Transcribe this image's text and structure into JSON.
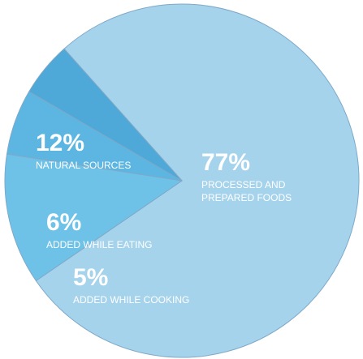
{
  "chart_data": {
    "type": "pie",
    "categories": [
      "PROCESSED AND PREPARED FOODS",
      "NATURAL SOURCES",
      "ADDED WHILE EATING",
      "ADDED WHILE COOKING"
    ],
    "values": [
      77,
      12,
      6,
      5
    ],
    "value_labels": [
      "77%",
      "12%",
      "6%",
      "5%"
    ],
    "colors": [
      "#a5d3ec",
      "#6ec2e8",
      "#5cb6e1",
      "#4ea8d8"
    ]
  }
}
